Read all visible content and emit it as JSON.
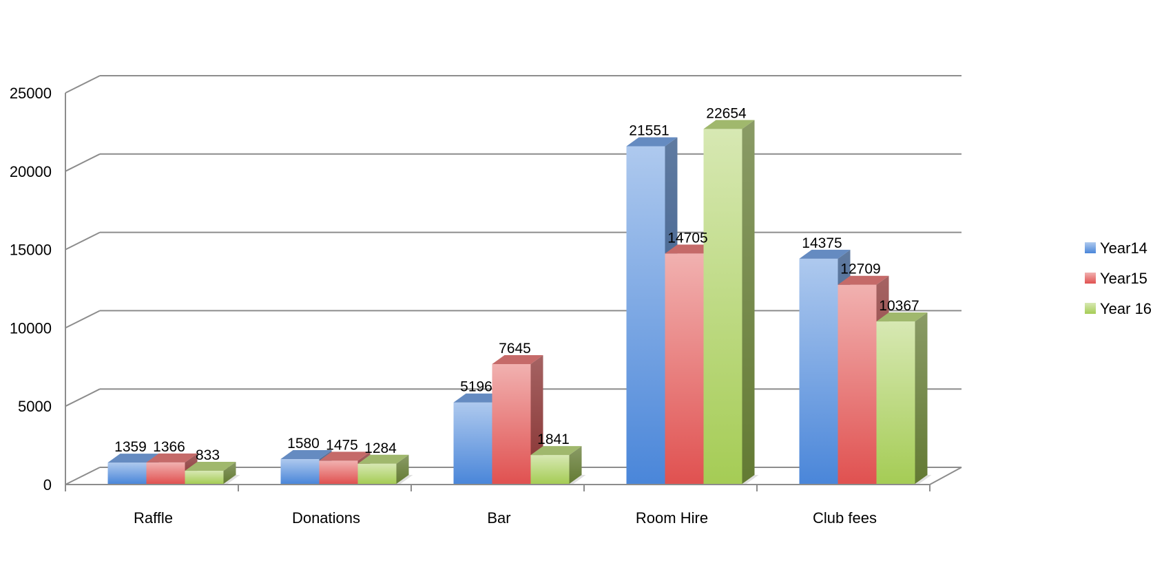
{
  "chart_data": {
    "type": "bar",
    "style": "3d-clustered-column",
    "categories": [
      "Raffle",
      "Donations",
      "Bar",
      "Room Hire",
      "Club fees"
    ],
    "series": [
      {
        "name": "Year14",
        "values": [
          1359,
          1580,
          5196,
          21551,
          14375
        ],
        "color": "#4a86d9"
      },
      {
        "name": "Year15",
        "values": [
          1366,
          1475,
          7645,
          14705,
          12709
        ],
        "color": "#e05150"
      },
      {
        "name": "Year 16",
        "values": [
          833,
          1284,
          1841,
          22654,
          10367
        ],
        "color": "#a5cc55"
      }
    ],
    "yticks": [
      0,
      5000,
      10000,
      15000,
      20000,
      25000
    ],
    "ylim": [
      0,
      25000
    ],
    "grid": true,
    "data_labels": true,
    "legend": "right"
  }
}
